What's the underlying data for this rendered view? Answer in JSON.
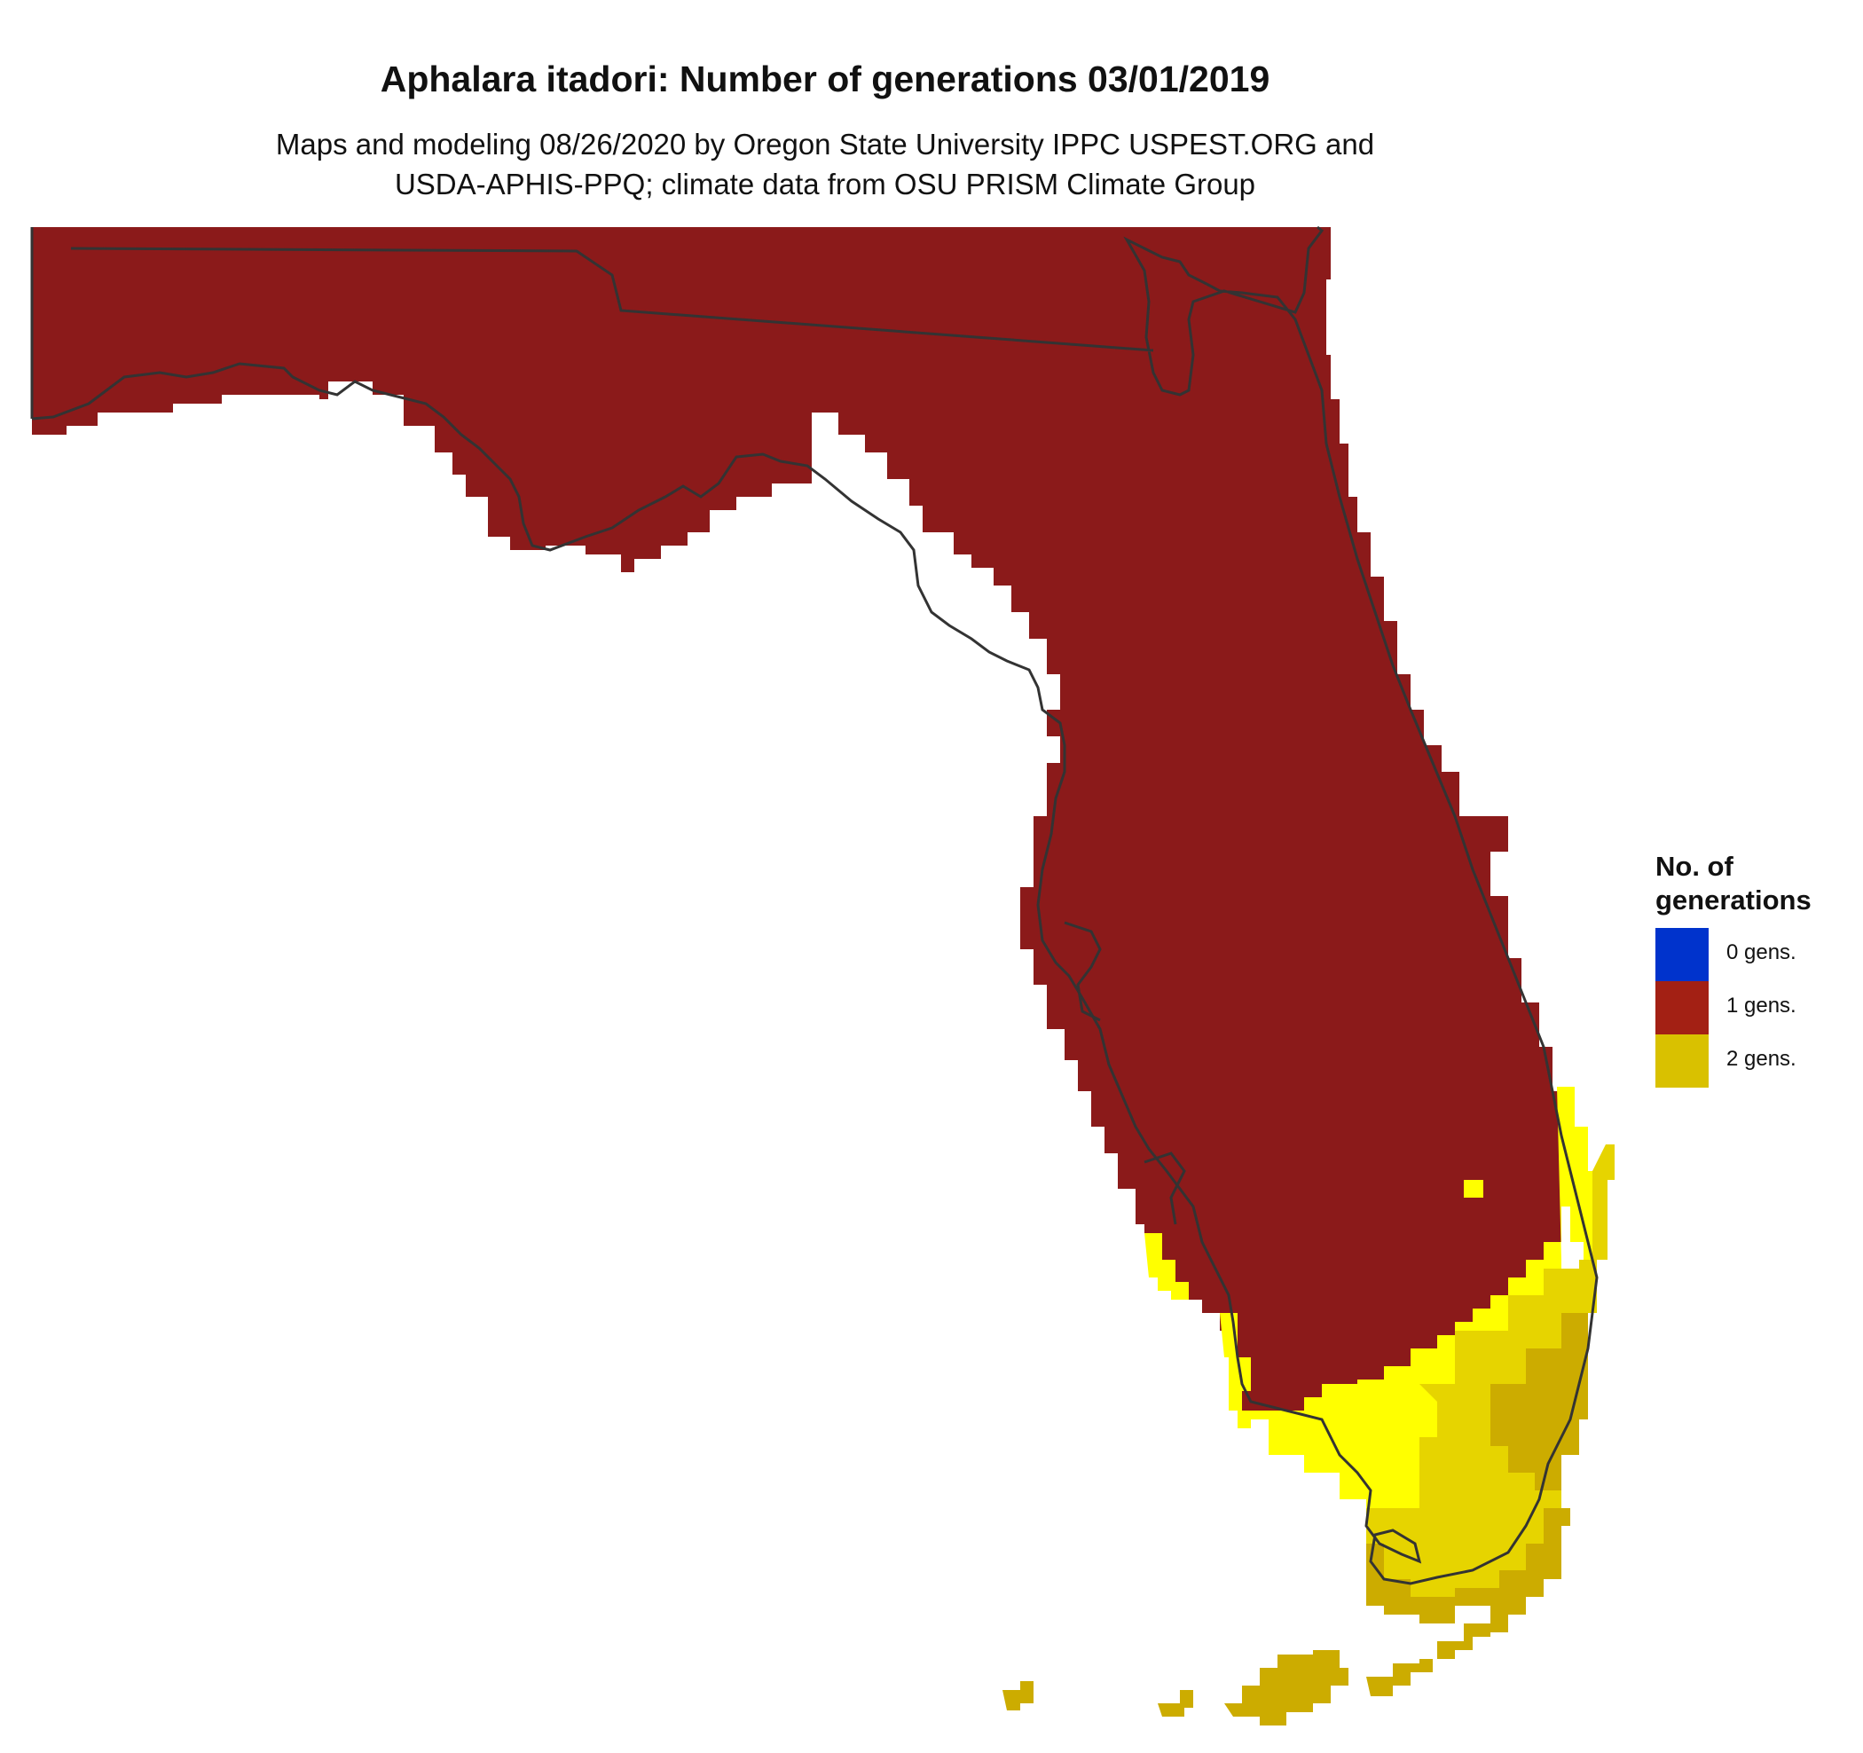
{
  "map": {
    "title": "Aphalara itadori: Number of generations 03/01/2019",
    "subtitle_line1": "Maps and modeling 08/26/2020 by Oregon State University IPPC USPEST.ORG and",
    "subtitle_line2": "USDA-APHIS-PPQ; climate data from OSU PRISM Climate Group",
    "region": "Florida"
  },
  "legend": {
    "title_line1": "No. of",
    "title_line2": "generations",
    "items": [
      {
        "label": "0 gens.",
        "color": "#0033cc"
      },
      {
        "label": "1 gens.",
        "color": "#a32014"
      },
      {
        "label": "2 gens.",
        "color": "#d9c100"
      }
    ]
  },
  "colors": {
    "one_gen_fill": "#8b1a1a",
    "two_gen_bright": "#ffff00",
    "two_gen_mid": "#e6d400",
    "two_gen_dark": "#ccac00",
    "boundary": "#333333"
  }
}
